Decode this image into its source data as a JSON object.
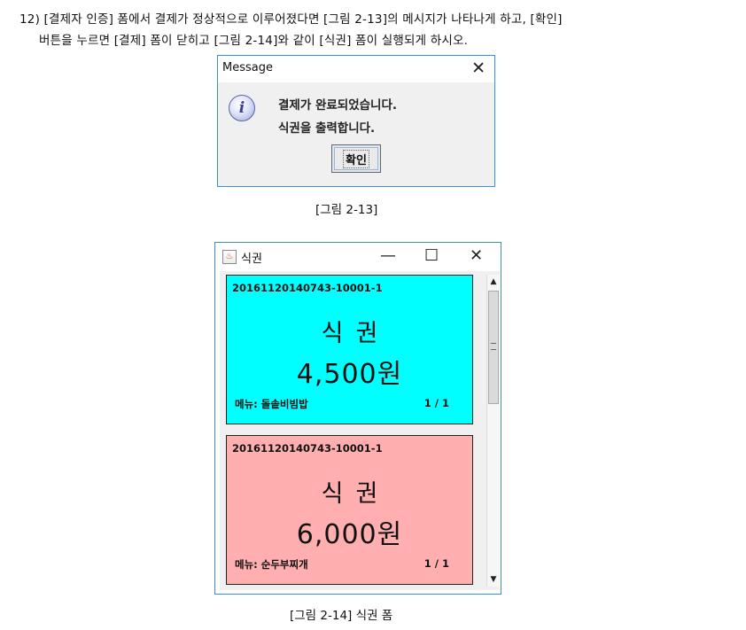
{
  "instruction": {
    "line1": "12) [결제자 인증] 폼에서 결제가 정상적으로 이루어졌다면 [그림 2-13]의 메시지가 나타나게 하고, [확인]",
    "line2": "버튼을 누르면 [결제] 폼이 닫히고 [그림 2-14]와 같이 [식권] 폼이 실행되게 하시오."
  },
  "message_dialog": {
    "title": "Message",
    "close": "✕",
    "icon": "i",
    "line1": "결제가 완료되었습니다.",
    "line2": "식권을 출력합니다.",
    "ok_label": "확인"
  },
  "caption1": "[그림 2-13]",
  "ticket_window": {
    "title": "식권",
    "minimize": "—",
    "maximize": "☐",
    "close": "✕",
    "tickets": [
      {
        "code": "20161120140743-10001-1",
        "label": "식권",
        "price": "4,500원",
        "menu": "메뉴: 돌솥비빔밥",
        "count": "1 / 1",
        "bg": "#00ffff"
      },
      {
        "code": "20161120140743-10001-1",
        "label": "식권",
        "price": "6,000원",
        "menu": "메뉴: 순두부찌개",
        "count": "1 / 1",
        "bg": "#ffafaf"
      }
    ],
    "scroll_up": "▲",
    "scroll_down": "▼"
  },
  "caption2": "[그림 2-14] 식권 폼"
}
